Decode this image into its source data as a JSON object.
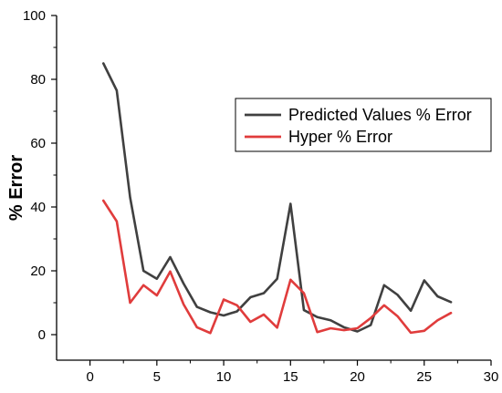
{
  "chart_data": {
    "type": "line",
    "title": "",
    "xlabel": "",
    "ylabel": "% Error",
    "xlim": [
      -2.5,
      30
    ],
    "ylim": [
      -8,
      100
    ],
    "xticks": [
      0,
      5,
      10,
      15,
      20,
      25,
      30
    ],
    "yticks": [
      0,
      20,
      40,
      60,
      80,
      100
    ],
    "grid": false,
    "legend_position": "right",
    "x": [
      1,
      2,
      3,
      4,
      5,
      6,
      7,
      8,
      9,
      10,
      11,
      12,
      13,
      14,
      15,
      16,
      17,
      18,
      19,
      20,
      21,
      22,
      23,
      24,
      25,
      26,
      27
    ],
    "series": [
      {
        "name": "Predicted Values % Error",
        "color": "#404040",
        "values": [
          85,
          76.5,
          43,
          20,
          17.5,
          24.3,
          16,
          8.7,
          7,
          6,
          7.3,
          11.7,
          13,
          17.5,
          41,
          7.7,
          5.5,
          4.5,
          2.3,
          1,
          3,
          15.5,
          12.5,
          7.5,
          17,
          12,
          10.2
        ]
      },
      {
        "name": "Hyper % Error",
        "color": "#e03c3c",
        "values": [
          42,
          35.5,
          10,
          15.5,
          12.3,
          19.8,
          9.5,
          2.3,
          0.5,
          11,
          9.2,
          4,
          6.3,
          2.2,
          17.2,
          13,
          0.8,
          2,
          1.4,
          2,
          5.2,
          9.2,
          5.8,
          0.6,
          1.2,
          4.5,
          6.8
        ]
      }
    ]
  }
}
